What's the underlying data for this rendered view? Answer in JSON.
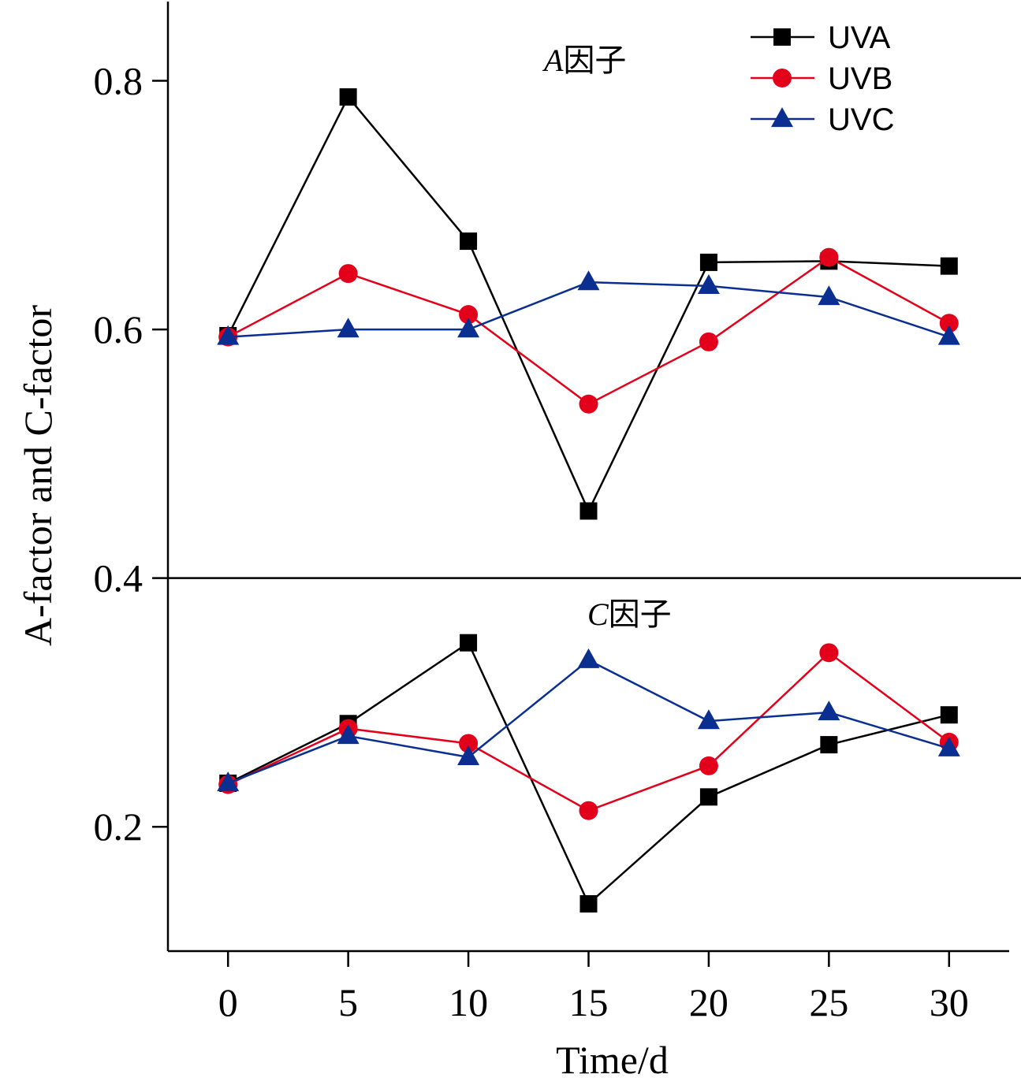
{
  "chart_data": {
    "type": "line",
    "xlabel": "Time/d",
    "ylabel": "A-factor and C-factor",
    "x": [
      0,
      5,
      10,
      15,
      20,
      25,
      30
    ],
    "x_ticks": [
      "0",
      "5",
      "10",
      "15",
      "20",
      "25",
      "30"
    ],
    "xlim": [
      -2.5,
      32.5
    ],
    "y_ticks": [
      {
        "value": 0.2,
        "label": "0.2"
      },
      {
        "value": 0.4,
        "label": "0.4"
      },
      {
        "value": 0.6,
        "label": "0.6"
      },
      {
        "value": 0.8,
        "label": "0.8"
      }
    ],
    "ylim": [
      0.1,
      0.865
    ],
    "grid": false,
    "legend_position": "top-right",
    "panels": [
      {
        "label_italic": "A",
        "label_rest": "因子",
        "series": [
          {
            "name": "UVA",
            "color": "#000000",
            "marker": "square",
            "values": [
              0.595,
              0.787,
              0.671,
              0.454,
              0.654,
              0.655,
              0.651
            ]
          },
          {
            "name": "UVB",
            "color": "#e3001b",
            "marker": "circle",
            "values": [
              0.594,
              0.645,
              0.612,
              0.54,
              0.59,
              0.658,
              0.605
            ]
          },
          {
            "name": "UVC",
            "color": "#0b2f91",
            "marker": "triangle",
            "values": [
              0.594,
              0.6,
              0.6,
              0.638,
              0.635,
              0.626,
              0.594
            ]
          }
        ]
      },
      {
        "label_italic": "C",
        "label_rest": "因子",
        "series": [
          {
            "name": "UVA",
            "color": "#000000",
            "marker": "square",
            "values": [
              0.235,
              0.283,
              0.348,
              0.138,
              0.224,
              0.266,
              0.29
            ]
          },
          {
            "name": "UVB",
            "color": "#e3001b",
            "marker": "circle",
            "values": [
              0.234,
              0.279,
              0.267,
              0.213,
              0.249,
              0.34,
              0.268
            ]
          },
          {
            "name": "UVC",
            "color": "#0b2f91",
            "marker": "triangle",
            "values": [
              0.235,
              0.273,
              0.256,
              0.334,
              0.285,
              0.292,
              0.263
            ]
          }
        ]
      }
    ],
    "divider_at": 0.4
  },
  "legend": [
    {
      "name": "UVA",
      "color": "#000000",
      "marker": "square"
    },
    {
      "name": "UVB",
      "color": "#e3001b",
      "marker": "circle"
    },
    {
      "name": "UVC",
      "color": "#0b2f91",
      "marker": "triangle"
    }
  ]
}
